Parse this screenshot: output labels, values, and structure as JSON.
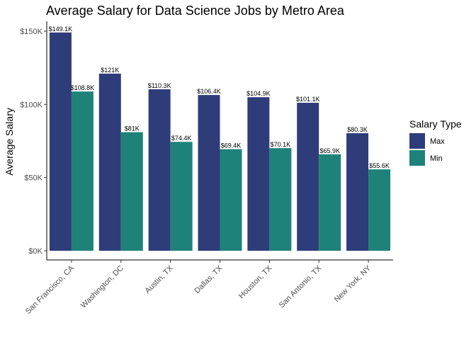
{
  "chart_data": {
    "type": "bar",
    "title": "Average Salary for Data Science Jobs by Metro Area",
    "xlabel": "",
    "ylabel": "Average Salary",
    "categories": [
      "San Francisco, CA",
      "Washington, DC",
      "Austin, TX",
      "Dallas, TX",
      "Houston, TX",
      "San Antonio, TX",
      "New York, NY"
    ],
    "series": [
      {
        "name": "Max",
        "color": "#2e3d7a",
        "values": [
          149.1,
          121,
          110.3,
          106.4,
          104.9,
          101.1,
          80.3
        ],
        "labels": [
          "$149.1K",
          "$121K",
          "$110.3K",
          "$106.4K",
          "$104.9K",
          "$101.1K",
          "$80.3K"
        ]
      },
      {
        "name": "Min",
        "color": "#1f8279",
        "values": [
          108.8,
          81,
          74.4,
          69.4,
          70.1,
          65.9,
          55.6
        ],
        "labels": [
          "$108.8K",
          "$81K",
          "$74.4K",
          "$69.4K",
          "$70.1K",
          "$65.9K",
          "$55.6K"
        ]
      }
    ],
    "ylim": [
      0,
      155
    ],
    "yticks": [
      0,
      50,
      100,
      150
    ],
    "ytick_labels": [
      "$0K",
      "$50K",
      "$100K",
      "$150K"
    ],
    "legend": {
      "title": "Salary Type",
      "position": "right"
    },
    "grid": false
  }
}
